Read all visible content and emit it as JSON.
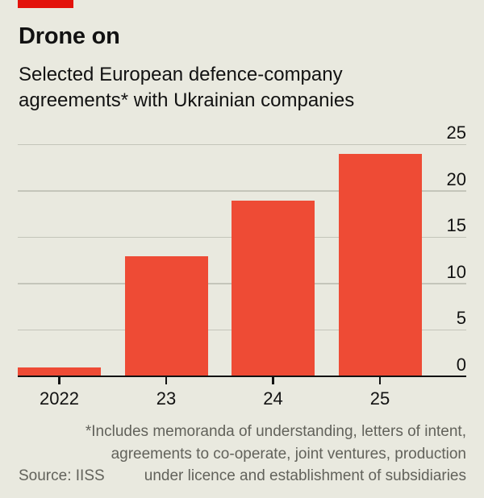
{
  "header": {
    "brand_tab_color": "#e3120b",
    "title": "Drone on",
    "subtitle_lines": [
      "Selected European defence-company",
      "agreements* with Ukrainian companies"
    ]
  },
  "chart_data": {
    "type": "bar",
    "title": "Drone on",
    "subtitle": "Selected European defence-company agreements* with Ukrainian companies",
    "categories": [
      "2022",
      "23",
      "24",
      "25"
    ],
    "values": [
      1,
      13,
      19,
      24
    ],
    "xlabel": "",
    "ylabel": "",
    "ylim": [
      0,
      25
    ],
    "yticks": [
      0,
      5,
      10,
      15,
      20,
      25
    ],
    "ytick_side": "right",
    "grid": "horizontal",
    "legend": "none",
    "bar_color": "#ee4b35",
    "gridline_color": "#c4c5ba",
    "axis_color": "#121212",
    "background_color": "#e9e9df"
  },
  "footnote": {
    "lines": [
      "*Includes memoranda of understanding, letters of intent,",
      "agreements to co-operate, joint ventures, production",
      "under licence and establishment of subsidiaries"
    ],
    "source": "Source: IISS",
    "text_color": "#62625b"
  }
}
